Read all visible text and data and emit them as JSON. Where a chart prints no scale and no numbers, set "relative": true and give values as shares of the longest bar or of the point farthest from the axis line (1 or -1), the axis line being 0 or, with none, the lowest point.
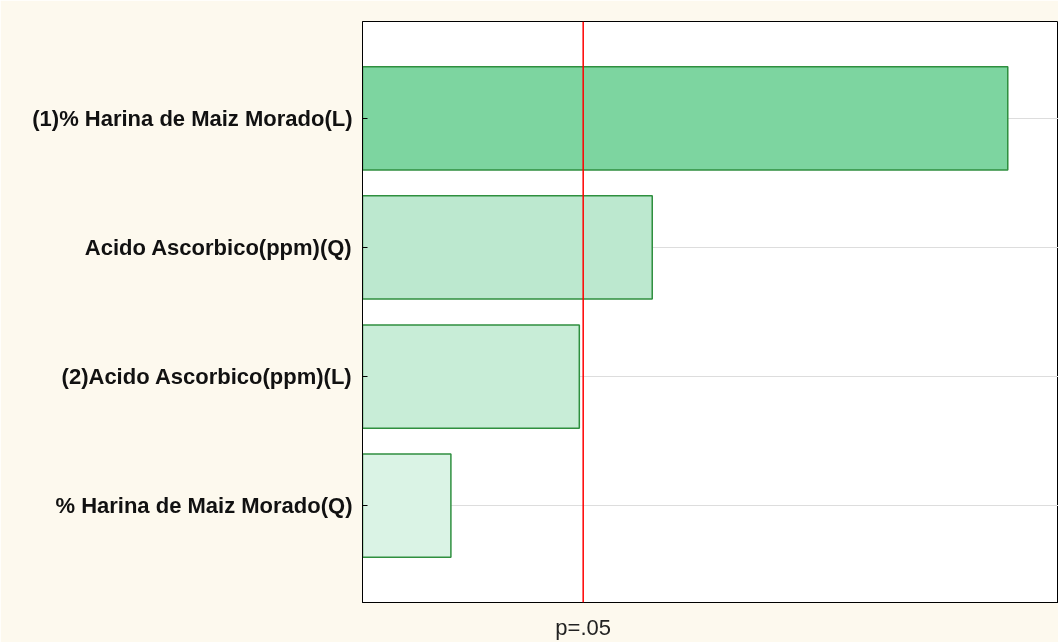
{
  "chart_data": {
    "type": "bar",
    "orientation": "horizontal",
    "relative": true,
    "categories": [
      "(1)% Harina de Maiz Morado(L)",
      "Acido Ascorbico(ppm)(Q)",
      "(2)Acido Ascorbico(ppm)(L)",
      "% Harina de Maiz Morado(Q)"
    ],
    "values": [
      1,
      0.449,
      0.336,
      0.137
    ],
    "colors": [
      "#7dd5a0",
      "#bce8cf",
      "#c8edd7",
      "#daf3e5"
    ],
    "ref_lines": [
      {
        "axis": "x",
        "value": 0.342,
        "label": "p=.05",
        "color": "#ff0000"
      }
    ],
    "grid": "y"
  }
}
